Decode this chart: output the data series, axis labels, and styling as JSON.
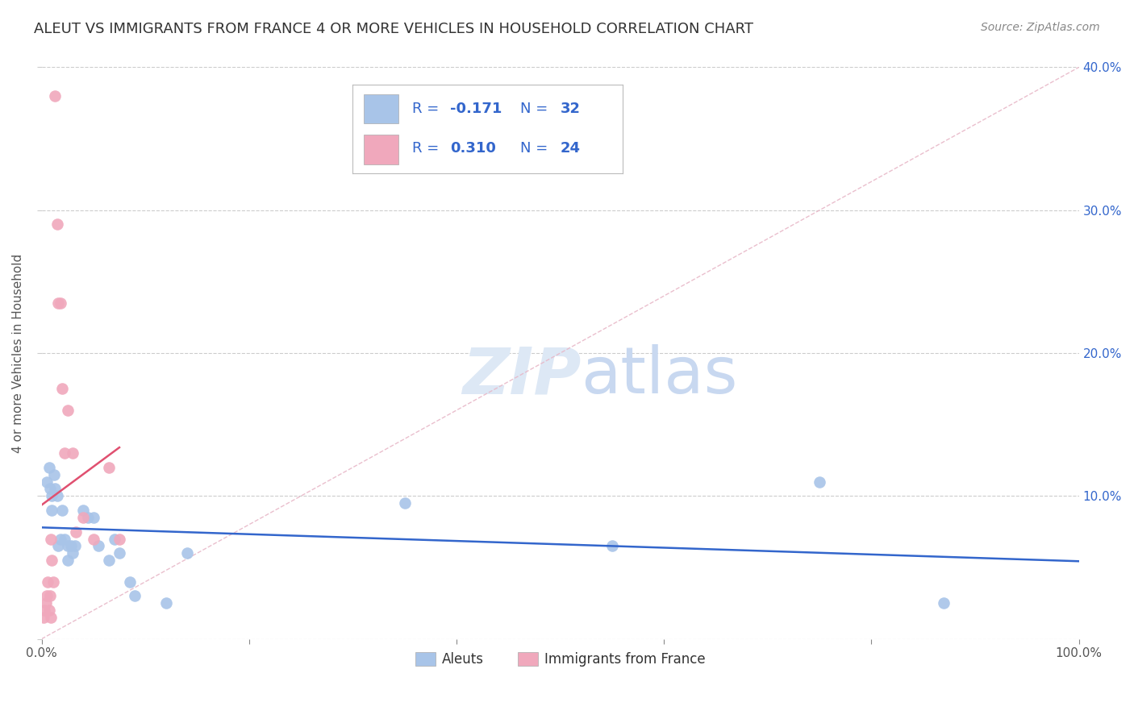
{
  "title": "ALEUT VS IMMIGRANTS FROM FRANCE 4 OR MORE VEHICLES IN HOUSEHOLD CORRELATION CHART",
  "source": "Source: ZipAtlas.com",
  "ylabel": "4 or more Vehicles in Household",
  "xlim": [
    0,
    1.0
  ],
  "ylim": [
    0,
    0.4
  ],
  "xticks": [
    0.0,
    0.2,
    0.4,
    0.6,
    0.8,
    1.0
  ],
  "xtick_labels": [
    "0.0%",
    "",
    "",
    "",
    "",
    "100.0%"
  ],
  "yticks": [
    0.0,
    0.1,
    0.2,
    0.3,
    0.4
  ],
  "ytick_labels_right": [
    "",
    "10.0%",
    "20.0%",
    "30.0%",
    "40.0%"
  ],
  "legend1_R": "-0.171",
  "legend1_N": "32",
  "legend2_R": "0.310",
  "legend2_N": "24",
  "aleuts_color": "#a8c4e8",
  "france_color": "#f0a8bc",
  "blue_line_color": "#3366cc",
  "pink_line_color": "#e05070",
  "ref_line_color": "#e8b8c8",
  "text_blue": "#3366cc",
  "text_dark": "#333333",
  "text_gray": "#888888",
  "grid_color": "#cccccc",
  "watermark_color": "#dde8f5",
  "aleuts_x": [
    0.005,
    0.007,
    0.008,
    0.01,
    0.01,
    0.012,
    0.013,
    0.015,
    0.016,
    0.018,
    0.02,
    0.022,
    0.025,
    0.025,
    0.028,
    0.03,
    0.032,
    0.04,
    0.045,
    0.05,
    0.055,
    0.065,
    0.07,
    0.075,
    0.085,
    0.09,
    0.12,
    0.14,
    0.35,
    0.55,
    0.75,
    0.87
  ],
  "aleuts_y": [
    0.11,
    0.12,
    0.105,
    0.1,
    0.09,
    0.115,
    0.105,
    0.1,
    0.065,
    0.07,
    0.09,
    0.07,
    0.065,
    0.055,
    0.065,
    0.06,
    0.065,
    0.09,
    0.085,
    0.085,
    0.065,
    0.055,
    0.07,
    0.06,
    0.04,
    0.03,
    0.025,
    0.06,
    0.095,
    0.065,
    0.11,
    0.025
  ],
  "france_x": [
    0.002,
    0.003,
    0.004,
    0.005,
    0.006,
    0.007,
    0.008,
    0.009,
    0.009,
    0.01,
    0.011,
    0.013,
    0.015,
    0.016,
    0.018,
    0.02,
    0.022,
    0.025,
    0.03,
    0.033,
    0.04,
    0.05,
    0.065,
    0.075
  ],
  "france_y": [
    0.015,
    0.02,
    0.025,
    0.03,
    0.04,
    0.02,
    0.03,
    0.015,
    0.07,
    0.055,
    0.04,
    0.38,
    0.29,
    0.235,
    0.235,
    0.175,
    0.13,
    0.16,
    0.13,
    0.075,
    0.085,
    0.07,
    0.12,
    0.07
  ]
}
